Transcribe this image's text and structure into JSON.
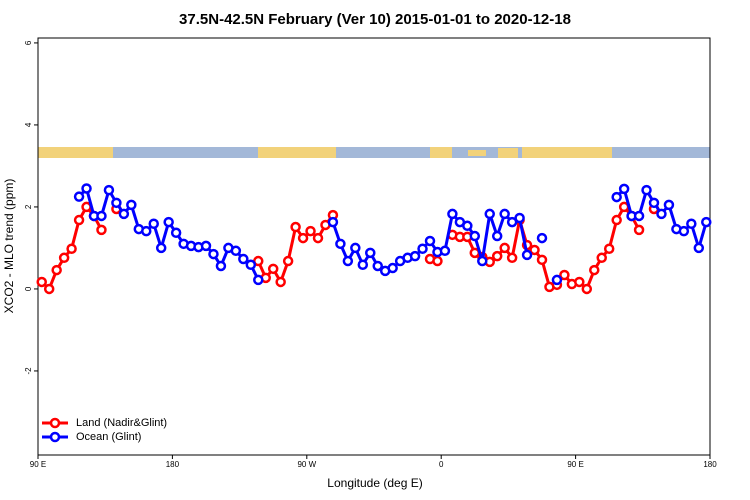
{
  "chart_data": {
    "type": "line",
    "title": "37.5N-42.5N February (Ver 10)   2015-01-01 to 2020-12-18",
    "xlabel": "Longitude (deg E)",
    "ylabel": "XCO2 - MLO trend (ppm)",
    "x": [
      92.5,
      97.5,
      102.5,
      107.5,
      112.5,
      117.5,
      122.5,
      127.5,
      132.5,
      137.5,
      142.5,
      147.5,
      152.5,
      157.5,
      162.5,
      167.5,
      172.5,
      177.5,
      182.5,
      187.5,
      192.5,
      197.5,
      202.5,
      207.5,
      212.5,
      217.5,
      222.5,
      227.5,
      232.5,
      237.5,
      242.5,
      247.5,
      252.5,
      257.5,
      262.5,
      267.5,
      272.5,
      277.5,
      282.5,
      287.5,
      292.5,
      297.5,
      302.5,
      307.5,
      312.5,
      317.5,
      322.5,
      327.5,
      332.5,
      337.5,
      342.5,
      347.5,
      352.5,
      357.5,
      362.5,
      367.5,
      372.5,
      377.5,
      382.5,
      387.5,
      392.5,
      397.5,
      402.5,
      407.5,
      412.5,
      417.5,
      422.5,
      427.5,
      432.5,
      437.5,
      442.5,
      447.5,
      452.5,
      457.5,
      462.5,
      467.5,
      472.5,
      477.5,
      482.5,
      487.5,
      492.5,
      497.5,
      502.5,
      507.5,
      512.5,
      517.5,
      522.5,
      527.5,
      532.5,
      537.5
    ],
    "series": [
      {
        "name": "Land (Nadir&Glint)",
        "color": "#ff0000",
        "values": [
          0.17,
          0.0,
          0.46,
          0.76,
          0.98,
          1.68,
          2.0,
          1.78,
          1.44,
          null,
          1.95,
          null,
          null,
          null,
          null,
          null,
          null,
          null,
          null,
          null,
          null,
          null,
          null,
          null,
          null,
          null,
          null,
          null,
          null,
          0.68,
          0.27,
          0.49,
          0.17,
          0.68,
          1.51,
          1.24,
          1.41,
          1.24,
          1.56,
          1.8,
          null,
          null,
          null,
          null,
          null,
          null,
          null,
          null,
          null,
          null,
          null,
          null,
          0.73,
          0.68,
          null,
          1.32,
          1.27,
          1.27,
          0.88,
          0.78,
          0.66,
          0.8,
          1.0,
          0.76,
          1.68,
          1.07,
          0.95,
          0.71,
          0.05,
          0.1,
          0.34,
          0.12,
          0.17,
          0.0,
          0.46,
          0.76,
          0.98,
          1.68,
          2.0,
          1.78,
          1.44,
          null,
          1.95,
          null,
          null,
          null,
          null,
          null,
          null,
          null
        ]
      },
      {
        "name": "Ocean (Glint)",
        "color": "#0000ff",
        "values": [
          null,
          null,
          null,
          null,
          null,
          2.25,
          2.45,
          1.78,
          1.78,
          2.41,
          2.1,
          1.83,
          2.05,
          1.46,
          1.41,
          1.59,
          1.0,
          1.63,
          1.37,
          1.1,
          1.05,
          1.02,
          1.05,
          0.85,
          0.56,
          1.0,
          0.93,
          0.73,
          0.59,
          0.22,
          null,
          null,
          null,
          null,
          null,
          null,
          null,
          null,
          null,
          1.63,
          1.1,
          0.68,
          1.0,
          0.59,
          0.88,
          0.56,
          0.44,
          0.51,
          0.68,
          0.76,
          0.8,
          0.98,
          1.17,
          0.9,
          0.93,
          1.83,
          1.63,
          1.54,
          1.29,
          0.68,
          1.83,
          1.29,
          1.83,
          1.63,
          1.73,
          0.83,
          null,
          1.24,
          null,
          0.22,
          null,
          null,
          null,
          null,
          null,
          null,
          null,
          2.24,
          2.44,
          1.78,
          1.78,
          2.41,
          2.1,
          1.83,
          2.05,
          1.46,
          1.41,
          1.59,
          1.0,
          1.63
        ]
      }
    ],
    "xlim": [
      90,
      540
    ],
    "xticks": [
      {
        "value": 90,
        "label": "90 E"
      },
      180,
      {
        "value": 270,
        "label": "90 W"
      },
      {
        "value": 360,
        "label": "0"
      },
      {
        "value": 450,
        "label": "90 E"
      },
      {
        "value": 540,
        "label": "180"
      }
    ],
    "ylim": [
      -4.05,
      6.12
    ],
    "yticks": [
      -2,
      0,
      2,
      4,
      6
    ],
    "legend": "lower left"
  }
}
